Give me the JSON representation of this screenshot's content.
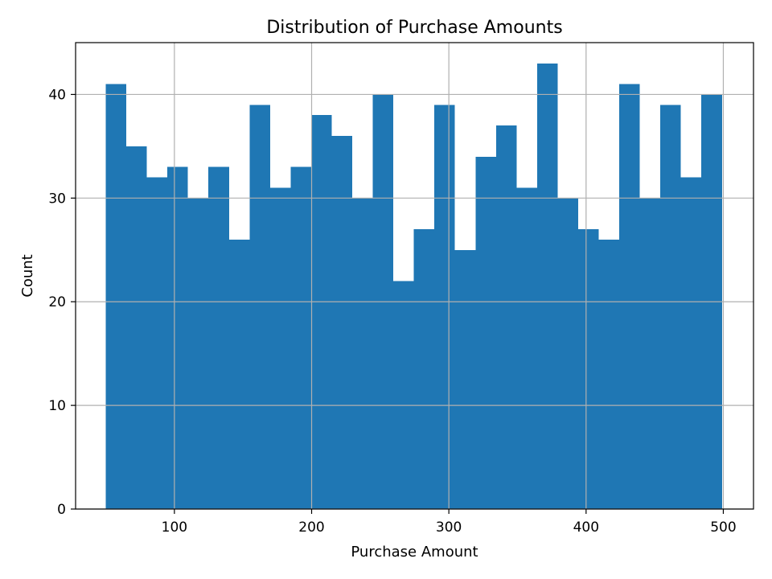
{
  "chart_data": {
    "type": "bar",
    "title": "Distribution of Purchase Amounts",
    "xlabel": "Purchase Amount",
    "ylabel": "Count",
    "bin_edges": [
      50.0,
      64.97,
      79.93,
      94.9,
      109.87,
      124.83,
      139.8,
      154.77,
      169.73,
      184.7,
      199.67,
      214.63,
      229.6,
      244.57,
      259.53,
      274.5,
      289.47,
      304.43,
      319.4,
      334.37,
      349.33,
      364.3,
      379.27,
      394.23,
      409.2,
      424.17,
      439.13,
      454.1,
      469.07,
      484.03,
      499.0
    ],
    "values": [
      41,
      35,
      32,
      33,
      30,
      33,
      26,
      39,
      31,
      33,
      38,
      36,
      30,
      40,
      22,
      27,
      39,
      25,
      34,
      37,
      31,
      43,
      30,
      27,
      26,
      41,
      30,
      39,
      32,
      40
    ],
    "xlim": [
      28,
      522
    ],
    "ylim": [
      0,
      45
    ],
    "x_ticks": [
      100,
      200,
      300,
      400,
      500
    ],
    "y_ticks": [
      0,
      10,
      20,
      30,
      40
    ],
    "x_tick_labels": [
      "100",
      "200",
      "300",
      "400",
      "500"
    ],
    "y_tick_labels": [
      "0",
      "10",
      "20",
      "30",
      "40"
    ],
    "grid": true,
    "bar_color": "#1f77b4",
    "grid_color": "#b0b0b0"
  }
}
